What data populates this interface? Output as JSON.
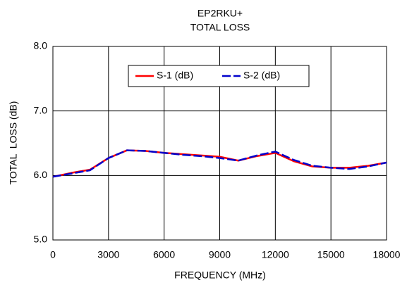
{
  "chart_data": {
    "type": "line",
    "title": "EP2RKU+",
    "subtitle": "TOTAL LOSS",
    "x_label": "FREQUENCY (MHz)",
    "y_label": "TOTAL  LOSS (dB)",
    "x": [
      0,
      1000,
      2000,
      3000,
      4000,
      5000,
      6000,
      7000,
      8000,
      9000,
      10000,
      11000,
      12000,
      13000,
      14000,
      15000,
      16000,
      17000,
      18000
    ],
    "series": [
      {
        "name": "S-1 (dB)",
        "color": "#ff0000",
        "dash": false,
        "values": [
          5.98,
          6.04,
          6.09,
          6.27,
          6.39,
          6.38,
          6.35,
          6.33,
          6.31,
          6.29,
          6.23,
          6.3,
          6.35,
          6.22,
          6.14,
          6.12,
          6.12,
          6.15,
          6.2
        ]
      },
      {
        "name": "S-2 (dB)",
        "color": "#0000cc",
        "dash": true,
        "values": [
          5.98,
          6.03,
          6.08,
          6.27,
          6.39,
          6.38,
          6.35,
          6.32,
          6.3,
          6.27,
          6.23,
          6.31,
          6.37,
          6.24,
          6.15,
          6.12,
          6.1,
          6.14,
          6.2
        ]
      }
    ],
    "xlim": [
      0,
      18000
    ],
    "xticks": [
      0,
      3000,
      6000,
      9000,
      12000,
      15000,
      18000
    ],
    "ylim": [
      5,
      8
    ],
    "yticks": [
      {
        "value": 5,
        "label": "5.0"
      },
      {
        "value": 6,
        "label": "6.0"
      },
      {
        "value": 7,
        "label": "7.0"
      },
      {
        "value": 8,
        "label": "8.0"
      }
    ],
    "grid": true,
    "legend": "top"
  }
}
